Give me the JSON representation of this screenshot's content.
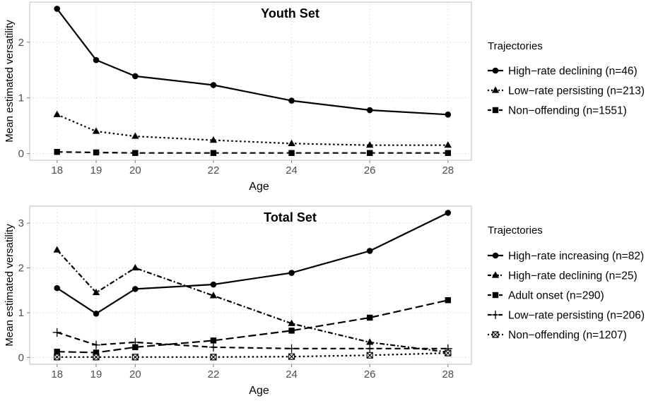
{
  "chart_data": [
    {
      "type": "line",
      "title": "Youth Set",
      "xlabel": "Age",
      "ylabel": "Mean estimated versatility",
      "x": [
        18,
        19,
        20,
        22,
        24,
        26,
        28
      ],
      "xlim": [
        17.3,
        28.6
      ],
      "ylim": [
        -0.12,
        2.72
      ],
      "yticks": [
        0,
        1,
        2
      ],
      "grid": true,
      "legend_title": "Trajectories",
      "legend_position": "right",
      "series": [
        {
          "name": "High−rate declining (n=46)",
          "values": [
            2.6,
            1.68,
            1.39,
            1.23,
            0.95,
            0.78,
            0.7
          ],
          "marker": "circle",
          "line": "solid"
        },
        {
          "name": "Low−rate persisting (n=213)",
          "values": [
            0.7,
            0.4,
            0.31,
            0.24,
            0.18,
            0.15,
            0.15
          ],
          "marker": "triangle",
          "line": "dotted"
        },
        {
          "name": "Non−offending (n=1551)",
          "values": [
            0.03,
            0.02,
            0.01,
            0.01,
            0.01,
            0.01,
            0.01
          ],
          "marker": "square",
          "line": "dashed"
        }
      ]
    },
    {
      "type": "line",
      "title": "Total Set",
      "xlabel": "Age",
      "ylabel": "Mean estimated versatility",
      "x": [
        18,
        19,
        20,
        22,
        24,
        26,
        28
      ],
      "xlim": [
        17.3,
        28.6
      ],
      "ylim": [
        -0.15,
        3.38
      ],
      "yticks": [
        0,
        1,
        2,
        3
      ],
      "grid": true,
      "legend_title": "Trajectories",
      "legend_position": "right",
      "series": [
        {
          "name": "High−rate increasing (n=82)",
          "values": [
            1.55,
            0.98,
            1.53,
            1.63,
            1.89,
            2.38,
            3.23
          ],
          "marker": "circle",
          "line": "solid"
        },
        {
          "name": "High−rate declining (n=25)",
          "values": [
            2.4,
            1.45,
            2.0,
            1.38,
            0.76,
            0.34,
            0.12
          ],
          "marker": "triangle",
          "line": "dashdot"
        },
        {
          "name": "Adult onset (n=290)",
          "values": [
            0.13,
            0.11,
            0.23,
            0.38,
            0.6,
            0.89,
            1.28
          ],
          "marker": "square",
          "line": "longdash"
        },
        {
          "name": "Low−rate persisting (n=206)",
          "values": [
            0.56,
            0.28,
            0.34,
            0.23,
            0.2,
            0.2,
            0.2
          ],
          "marker": "plus",
          "line": "dashed"
        },
        {
          "name": "Non−offending (n=1207)",
          "values": [
            0.01,
            0.01,
            0.01,
            0.01,
            0.02,
            0.05,
            0.1
          ],
          "marker": "boxx",
          "line": "dotted"
        }
      ]
    }
  ]
}
